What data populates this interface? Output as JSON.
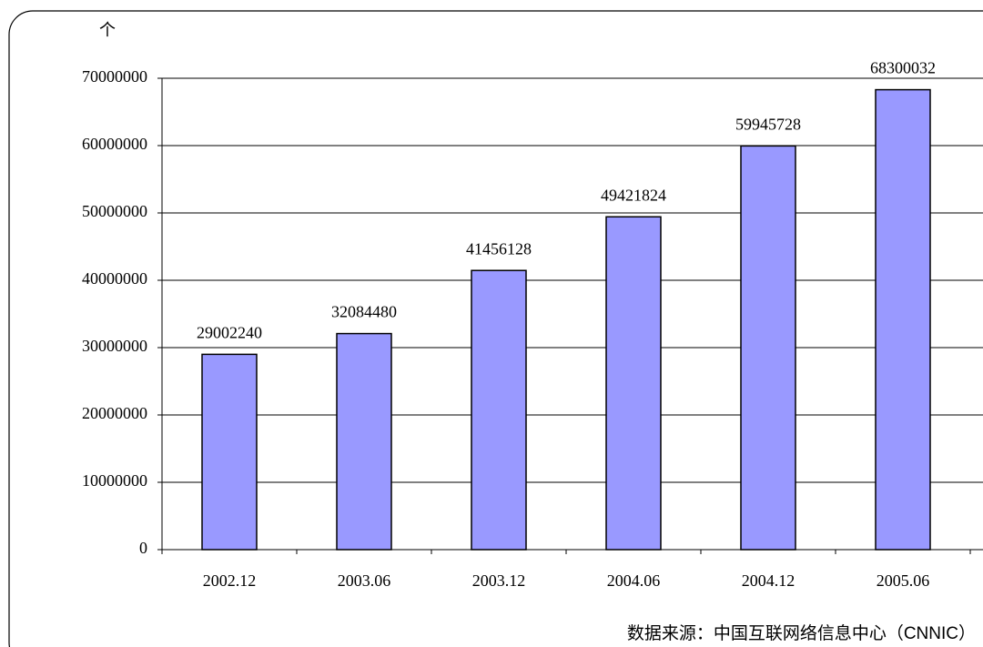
{
  "chart_data": {
    "type": "bar",
    "y_label": "个",
    "source": "数据来源：中国互联网络信息中心（CNNIC）",
    "categories": [
      "2002.12",
      "2003.06",
      "2003.12",
      "2004.06",
      "2004.12",
      "2005.06"
    ],
    "values": [
      29002240,
      32084480,
      41456128,
      49421824,
      59945728,
      68300032
    ],
    "color": "#9999ff",
    "ylim": [
      0,
      70000000
    ],
    "yticks": [
      0,
      10000000,
      20000000,
      30000000,
      40000000,
      50000000,
      60000000,
      70000000
    ],
    "grid": true
  }
}
